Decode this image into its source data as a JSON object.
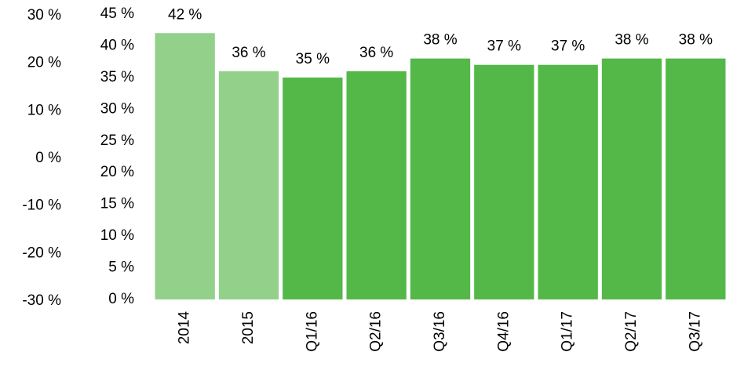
{
  "chart_data": {
    "type": "bar",
    "categories": [
      "2014",
      "2015",
      "Q1/16",
      "Q2/16",
      "Q3/16",
      "Q4/16",
      "Q1/17",
      "Q2/17",
      "Q3/17"
    ],
    "values": [
      42,
      36,
      35,
      36,
      38,
      37,
      37,
      38,
      38
    ],
    "value_labels": [
      "42 %",
      "36 %",
      "35 %",
      "36 %",
      "38 %",
      "37 %",
      "37 %",
      "38 %",
      "38 %"
    ],
    "colors": [
      "#93d18b",
      "#93d18b",
      "#53b848",
      "#53b848",
      "#53b848",
      "#53b848",
      "#53b848",
      "#53b848",
      "#53b848"
    ],
    "ylim": [
      0,
      45
    ],
    "yticks": [
      {
        "value": 0,
        "label": "0 %"
      },
      {
        "value": 5,
        "label": "5 %"
      },
      {
        "value": 10,
        "label": "10 %"
      },
      {
        "value": 15,
        "label": "15 %"
      },
      {
        "value": 20,
        "label": "20 %"
      },
      {
        "value": 25,
        "label": "25 %"
      },
      {
        "value": 30,
        "label": "30 %"
      },
      {
        "value": 35,
        "label": "35 %"
      },
      {
        "value": 40,
        "label": "40 %"
      },
      {
        "value": 45,
        "label": "45 %"
      }
    ],
    "y2lim": [
      -30,
      30
    ],
    "y2ticks": [
      {
        "value": -30,
        "label": "-30 %"
      },
      {
        "value": -20,
        "label": "-20 %"
      },
      {
        "value": -10,
        "label": "-10 %"
      },
      {
        "value": 0,
        "label": "0 %"
      },
      {
        "value": 10,
        "label": "10 %"
      },
      {
        "value": 20,
        "label": "20 %"
      },
      {
        "value": 30,
        "label": "30 %"
      }
    ],
    "grid": false
  }
}
